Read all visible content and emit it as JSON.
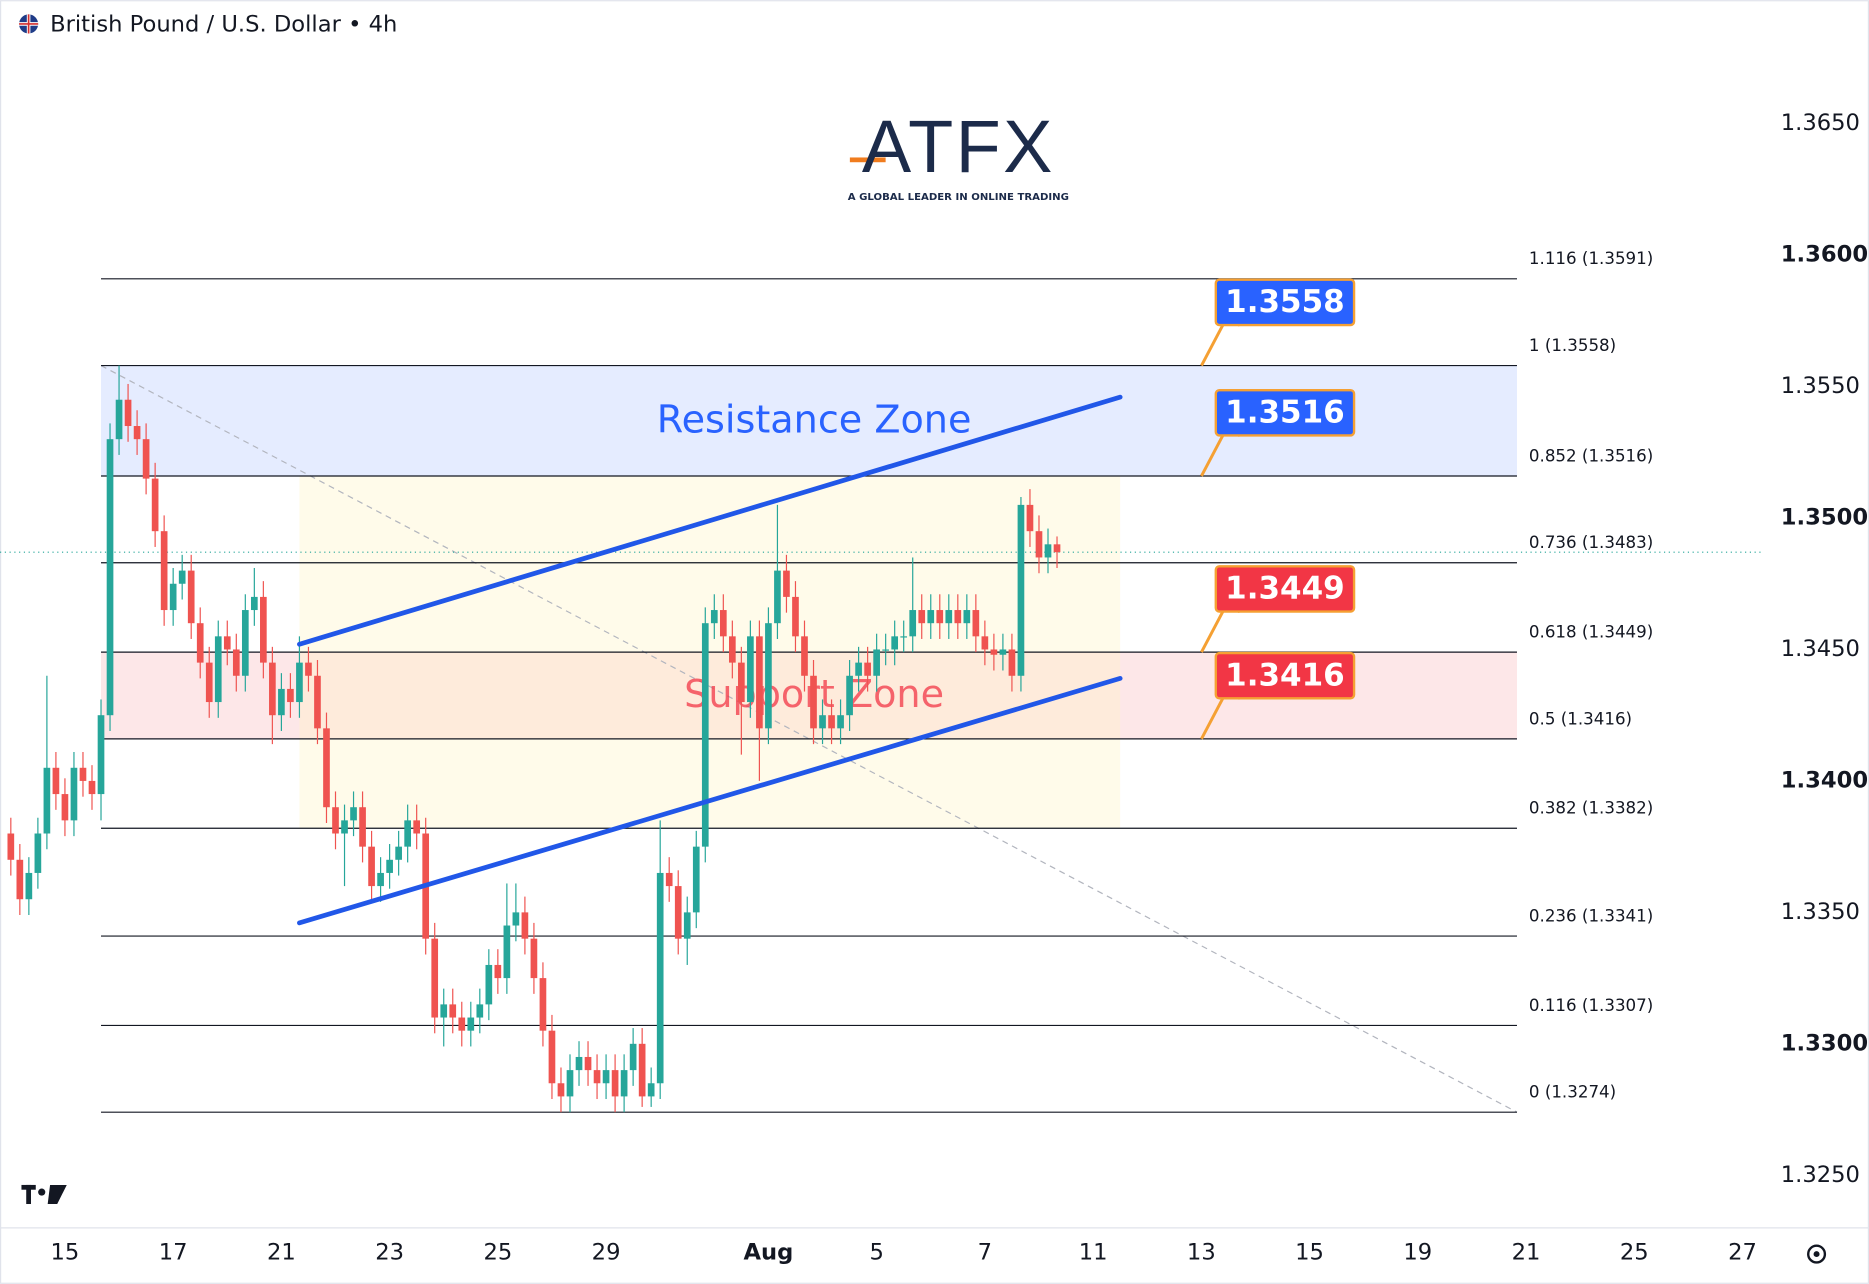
{
  "chart_data": {
    "type": "candlestick",
    "title": "British Pound / U.S. Dollar • 4h",
    "watermark": {
      "logo": "ATFX",
      "tagline": "A GLOBAL LEADER IN ONLINE TRADING"
    },
    "up_color": "#26a69a",
    "down_color": "#ef5350",
    "x": [
      0,
      1,
      2,
      3,
      4,
      5,
      6,
      7,
      8,
      9,
      10,
      11,
      12,
      13,
      14,
      15,
      16,
      17,
      18,
      19,
      20,
      21,
      22,
      23,
      24,
      25,
      26,
      27,
      28,
      29,
      30,
      31,
      32,
      33,
      34,
      35,
      36,
      37,
      38,
      39,
      40,
      41,
      42,
      43,
      44,
      45,
      46,
      47,
      48,
      49,
      50,
      51,
      52,
      53,
      54,
      55,
      56,
      57,
      58,
      59,
      60,
      61,
      62,
      63,
      64,
      65,
      66,
      67,
      68,
      69,
      70,
      71,
      72,
      73,
      74,
      75,
      76,
      77,
      78,
      79,
      80,
      81,
      82,
      83,
      84,
      85,
      86,
      87,
      88,
      89,
      90,
      91,
      92,
      93,
      94,
      95,
      96,
      97,
      98,
      99,
      100,
      101,
      102,
      103,
      104,
      105,
      106,
      107,
      108,
      109,
      110,
      111,
      112,
      113,
      114,
      115,
      116
    ],
    "open": [
      1.338,
      1.337,
      1.3355,
      1.3365,
      1.338,
      1.3405,
      1.3395,
      1.3385,
      1.3405,
      1.34,
      1.3395,
      1.3425,
      1.353,
      1.3545,
      1.3535,
      1.353,
      1.3515,
      1.3495,
      1.3465,
      1.3475,
      1.348,
      1.346,
      1.3445,
      1.343,
      1.3455,
      1.345,
      1.344,
      1.3465,
      1.347,
      1.3445,
      1.3425,
      1.3435,
      1.343,
      1.3445,
      1.344,
      1.342,
      1.339,
      1.338,
      1.3385,
      1.339,
      1.3375,
      1.336,
      1.3365,
      1.337,
      1.3375,
      1.3385,
      1.338,
      1.334,
      1.331,
      1.3315,
      1.331,
      1.3305,
      1.331,
      1.3315,
      1.333,
      1.3325,
      1.3345,
      1.335,
      1.334,
      1.3325,
      1.3305,
      1.3285,
      1.328,
      1.329,
      1.3295,
      1.329,
      1.3285,
      1.329,
      1.328,
      1.329,
      1.33,
      1.328,
      1.3285,
      1.3365,
      1.336,
      1.334,
      1.335,
      1.3375,
      1.346,
      1.3465,
      1.3455,
      1.3445,
      1.343,
      1.3455,
      1.342,
      1.346,
      1.348,
      1.347,
      1.3455,
      1.344,
      1.342,
      1.3425,
      1.342,
      1.3425,
      1.344,
      1.3445,
      1.344,
      1.345,
      1.345,
      1.3455,
      1.3455,
      1.3465,
      1.346,
      1.3465,
      1.346,
      1.3465,
      1.346,
      1.3465,
      1.3455,
      1.345,
      1.3448,
      1.345,
      1.344,
      1.3505,
      1.3495,
      1.3485,
      1.349
    ],
    "high": [
      1.3386,
      1.3376,
      1.3371,
      1.3386,
      1.344,
      1.3411,
      1.3401,
      1.3411,
      1.3411,
      1.3406,
      1.3431,
      1.3536,
      1.3558,
      1.3551,
      1.3541,
      1.3536,
      1.3521,
      1.3501,
      1.3481,
      1.3486,
      1.3486,
      1.3466,
      1.3451,
      1.3461,
      1.3461,
      1.3456,
      1.3471,
      1.3481,
      1.3476,
      1.3451,
      1.3441,
      1.3441,
      1.3455,
      1.3451,
      1.3446,
      1.3426,
      1.3396,
      1.3391,
      1.3396,
      1.3396,
      1.3381,
      1.3371,
      1.3376,
      1.3381,
      1.3391,
      1.3391,
      1.3386,
      1.3346,
      1.3321,
      1.3321,
      1.3316,
      1.3316,
      1.3321,
      1.3336,
      1.3336,
      1.3361,
      1.3361,
      1.3356,
      1.3346,
      1.3331,
      1.3311,
      1.3291,
      1.3296,
      1.3301,
      1.3301,
      1.3296,
      1.3296,
      1.3296,
      1.3296,
      1.3306,
      1.3306,
      1.3291,
      1.3385,
      1.3371,
      1.3366,
      1.3356,
      1.3381,
      1.3466,
      1.3471,
      1.3471,
      1.3461,
      1.3451,
      1.3461,
      1.3461,
      1.3466,
      1.3505,
      1.3486,
      1.3476,
      1.3461,
      1.3446,
      1.3431,
      1.3431,
      1.3431,
      1.3446,
      1.3451,
      1.3451,
      1.3456,
      1.3456,
      1.3461,
      1.3461,
      1.3485,
      1.3471,
      1.3471,
      1.3471,
      1.3471,
      1.3471,
      1.3471,
      1.3471,
      1.3461,
      1.3456,
      1.3456,
      1.3456,
      1.3508,
      1.3511,
      1.3501,
      1.3496,
      1.3493
    ],
    "low": [
      1.3364,
      1.3349,
      1.3349,
      1.3359,
      1.3374,
      1.3389,
      1.3379,
      1.3379,
      1.3394,
      1.3389,
      1.3385,
      1.3419,
      1.3524,
      1.3529,
      1.3524,
      1.3509,
      1.3489,
      1.3459,
      1.3459,
      1.3469,
      1.3454,
      1.3439,
      1.3424,
      1.3424,
      1.3444,
      1.3434,
      1.3434,
      1.3459,
      1.3439,
      1.3414,
      1.3419,
      1.3424,
      1.3424,
      1.3434,
      1.3414,
      1.3384,
      1.3374,
      1.336,
      1.3379,
      1.3369,
      1.3354,
      1.3354,
      1.3359,
      1.3364,
      1.3369,
      1.3374,
      1.3334,
      1.3304,
      1.3299,
      1.3304,
      1.3299,
      1.3299,
      1.3304,
      1.3309,
      1.3319,
      1.3319,
      1.3339,
      1.3334,
      1.3319,
      1.3299,
      1.3279,
      1.3274,
      1.3274,
      1.3284,
      1.3284,
      1.3279,
      1.3279,
      1.3274,
      1.3274,
      1.3284,
      1.3276,
      1.3276,
      1.3279,
      1.3354,
      1.3334,
      1.333,
      1.3344,
      1.3369,
      1.3454,
      1.3449,
      1.3439,
      1.341,
      1.3424,
      1.34,
      1.3414,
      1.3454,
      1.3464,
      1.3449,
      1.3434,
      1.3414,
      1.3414,
      1.3414,
      1.3414,
      1.3419,
      1.3434,
      1.3434,
      1.3434,
      1.3444,
      1.3444,
      1.3449,
      1.3449,
      1.3454,
      1.3454,
      1.3454,
      1.3454,
      1.3454,
      1.3454,
      1.3449,
      1.3444,
      1.3442,
      1.3442,
      1.3434,
      1.3434,
      1.3489,
      1.3479,
      1.3479,
      1.3481
    ],
    "close": [
      1.337,
      1.3355,
      1.3365,
      1.338,
      1.3405,
      1.3395,
      1.3385,
      1.3405,
      1.34,
      1.3395,
      1.3425,
      1.353,
      1.3545,
      1.3535,
      1.353,
      1.3515,
      1.3495,
      1.3465,
      1.3475,
      1.348,
      1.346,
      1.3445,
      1.343,
      1.3455,
      1.345,
      1.344,
      1.3465,
      1.347,
      1.3445,
      1.3425,
      1.3435,
      1.343,
      1.3445,
      1.344,
      1.342,
      1.339,
      1.338,
      1.3385,
      1.339,
      1.3375,
      1.336,
      1.3365,
      1.337,
      1.3375,
      1.3385,
      1.338,
      1.334,
      1.331,
      1.3315,
      1.331,
      1.3305,
      1.331,
      1.3315,
      1.333,
      1.3325,
      1.3345,
      1.335,
      1.334,
      1.3325,
      1.3305,
      1.3285,
      1.328,
      1.329,
      1.3295,
      1.329,
      1.3285,
      1.329,
      1.328,
      1.329,
      1.33,
      1.328,
      1.3285,
      1.3365,
      1.336,
      1.334,
      1.335,
      1.3375,
      1.346,
      1.3465,
      1.3455,
      1.3445,
      1.343,
      1.3455,
      1.342,
      1.346,
      1.348,
      1.347,
      1.3455,
      1.344,
      1.342,
      1.3425,
      1.342,
      1.3425,
      1.344,
      1.3445,
      1.344,
      1.345,
      1.345,
      1.3455,
      1.3455,
      1.3465,
      1.346,
      1.3465,
      1.346,
      1.3465,
      1.346,
      1.3465,
      1.3455,
      1.345,
      1.3448,
      1.345,
      1.344,
      1.3505,
      1.3495,
      1.3485,
      1.349,
      1.3487
    ],
    "xlim": [
      -1.2,
      194.4
    ],
    "xticks": [
      {
        "value": 6,
        "label": "15"
      },
      {
        "value": 18,
        "label": "17"
      },
      {
        "value": 30,
        "label": "21"
      },
      {
        "value": 42,
        "label": "23"
      },
      {
        "value": 54,
        "label": "25"
      },
      {
        "value": 66,
        "label": "29"
      },
      {
        "value": 84,
        "label": "Aug"
      },
      {
        "value": 96,
        "label": "5"
      },
      {
        "value": 108,
        "label": "7"
      },
      {
        "value": 120,
        "label": "11"
      },
      {
        "value": 132,
        "label": "13"
      },
      {
        "value": 144,
        "label": "15"
      },
      {
        "value": 156,
        "label": "19"
      },
      {
        "value": 168,
        "label": "21"
      },
      {
        "value": 180,
        "label": "25"
      },
      {
        "value": 192,
        "label": "27"
      }
    ],
    "ylim": [
      1.323,
      1.3697
    ],
    "yticks": [
      {
        "value": 1.325,
        "label": "1.3250"
      },
      {
        "value": 1.33,
        "label": "1.3300"
      },
      {
        "value": 1.335,
        "label": "1.3350"
      },
      {
        "value": 1.34,
        "label": "1.3400"
      },
      {
        "value": 1.345,
        "label": "1.3450"
      },
      {
        "value": 1.35,
        "label": "1.3500"
      },
      {
        "value": 1.355,
        "label": "1.3550"
      },
      {
        "value": 1.36,
        "label": "1.3600"
      },
      {
        "value": 1.365,
        "label": "1.3650"
      }
    ],
    "fib_trend": {
      "x": [
        10,
        167
      ],
      "y": [
        1.3558,
        1.3274
      ]
    },
    "fib_levels": [
      {
        "value": 1.3591,
        "label": "1.116 (1.3591)"
      },
      {
        "value": 1.3558,
        "label": "1 (1.3558)"
      },
      {
        "value": 1.3516,
        "label": "0.852 (1.3516)"
      },
      {
        "value": 1.3483,
        "label": "0.736 (1.3483)"
      },
      {
        "value": 1.3449,
        "label": "0.618 (1.3449)"
      },
      {
        "value": 1.3416,
        "label": "0.5 (1.3416)"
      },
      {
        "value": 1.3382,
        "label": "0.382 (1.3382)"
      },
      {
        "value": 1.3341,
        "label": "0.236 (1.3341)"
      },
      {
        "value": 1.3307,
        "label": "0.116 (1.3307)"
      },
      {
        "value": 1.3274,
        "label": "0 (1.3274)"
      }
    ],
    "zones": [
      {
        "label": "Resistance Zone",
        "from": 1.3516,
        "to": 1.3558,
        "color": "#2962ff"
      },
      {
        "label": "Support Zone",
        "from": 1.3416,
        "to": 1.3449,
        "color": "#f23645"
      }
    ],
    "trendlines": [
      {
        "x": [
          32,
          123
        ],
        "y": [
          1.3452,
          1.3546
        ],
        "color": "#2157e8"
      },
      {
        "x": [
          32,
          123
        ],
        "y": [
          1.3346,
          1.3439
        ],
        "color": "#2157e8"
      }
    ],
    "callouts": [
      {
        "value": 1.3558,
        "color": "#2962ff"
      },
      {
        "value": 1.3516,
        "color": "#2962ff"
      },
      {
        "value": 1.3449,
        "color": "#f23645"
      },
      {
        "value": 1.3416,
        "color": "#f23645"
      }
    ]
  }
}
